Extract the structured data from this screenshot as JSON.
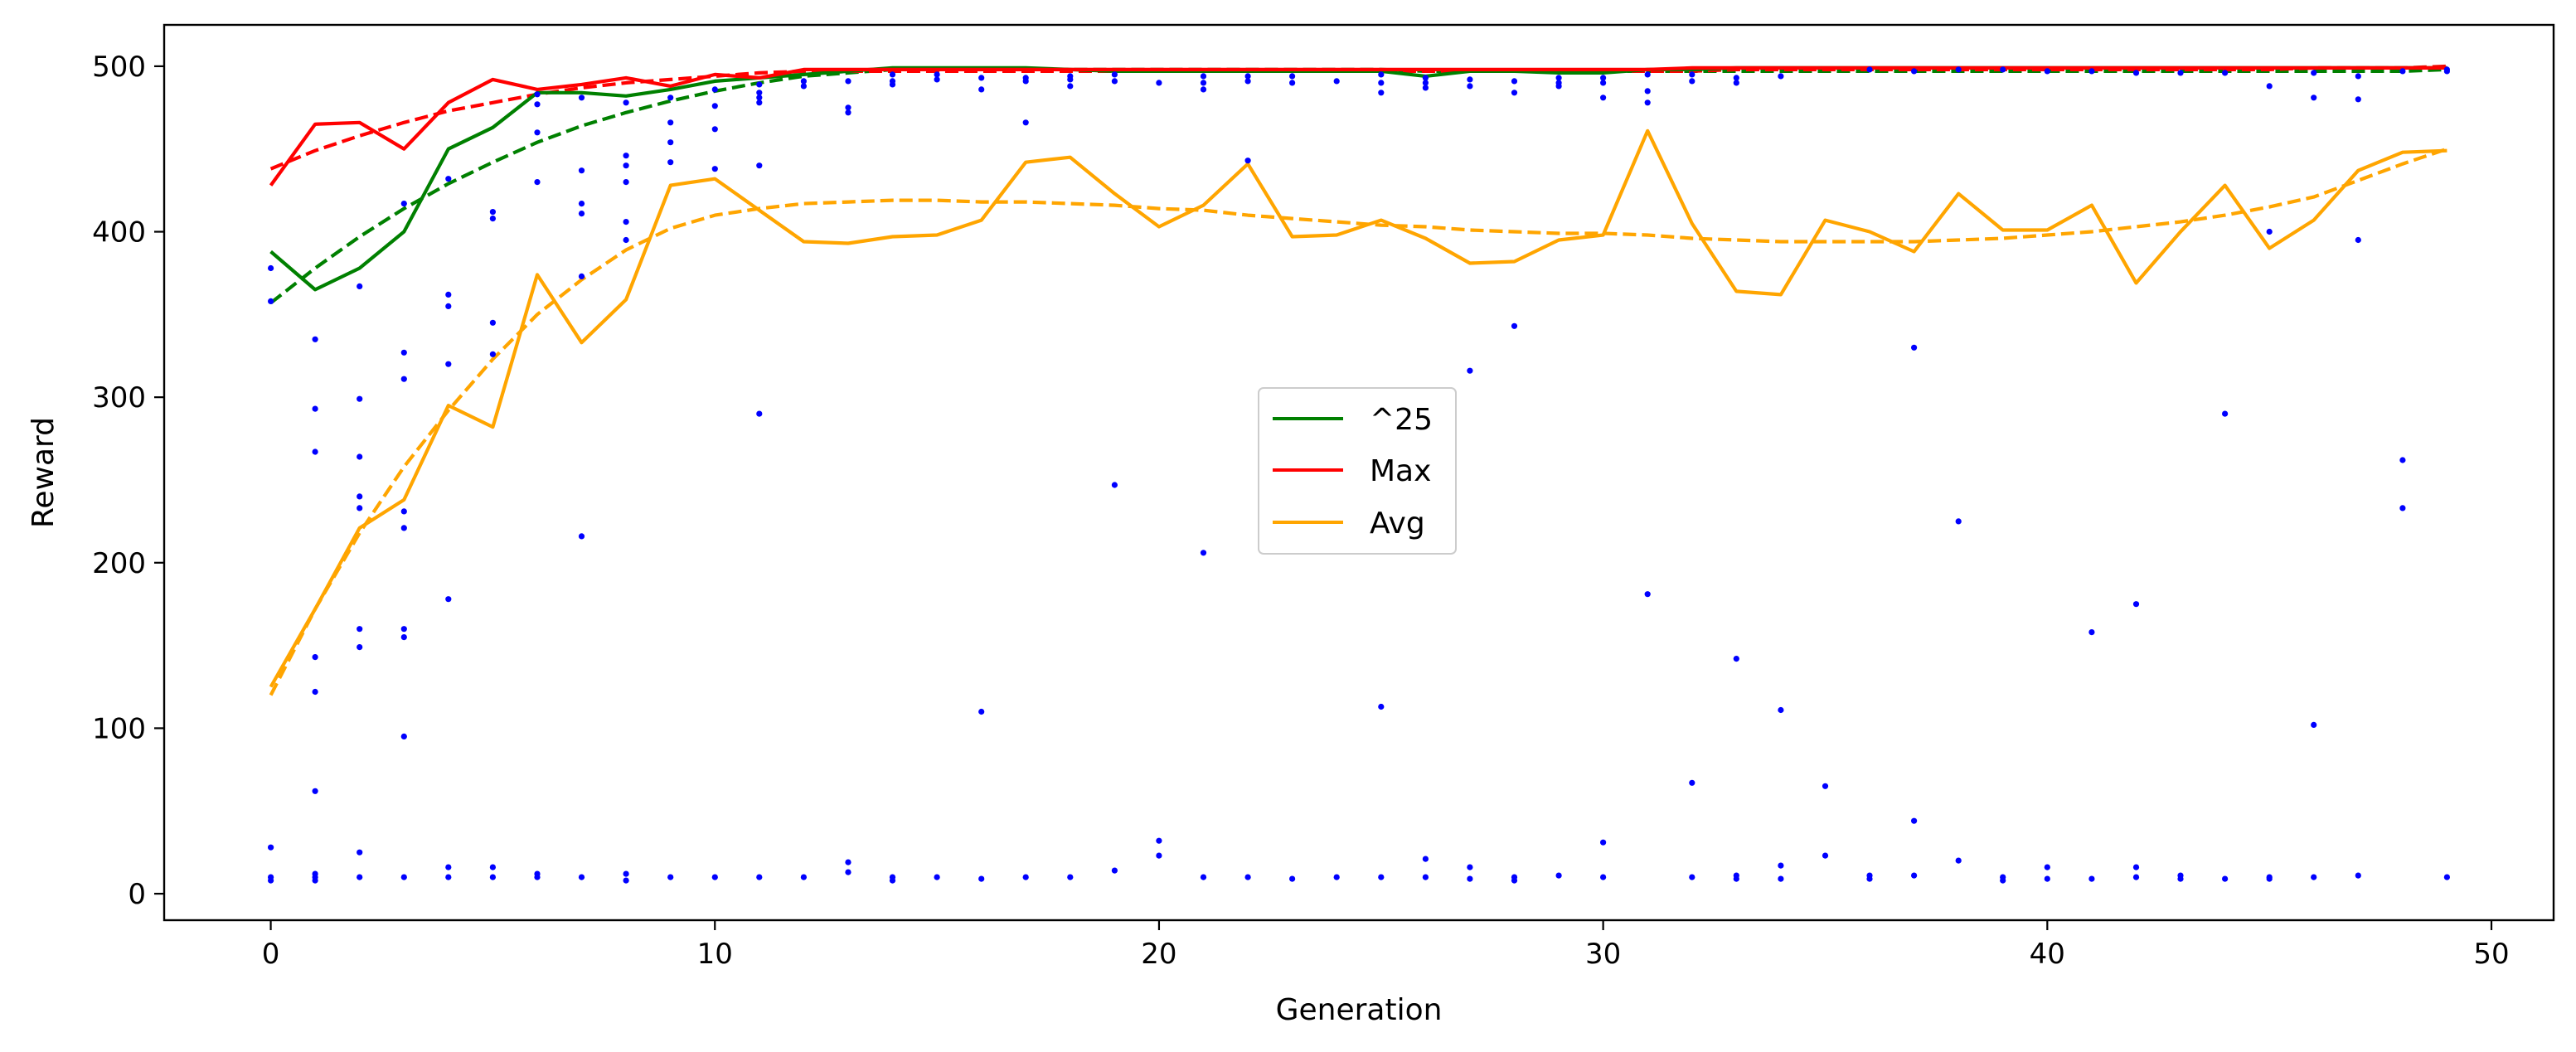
{
  "chart_data": {
    "type": "line",
    "title": "",
    "xlabel": "Generation",
    "ylabel": "Reward",
    "xlim": [
      -2.4,
      51.4
    ],
    "ylim": [
      -16,
      525
    ],
    "xticks": [
      0,
      10,
      20,
      30,
      40,
      50
    ],
    "yticks": [
      0,
      100,
      200,
      300,
      400,
      500
    ],
    "grid": false,
    "legend_position": "center",
    "colors": {
      "p25": "#008000",
      "max": "#ff0000",
      "avg": "#ffa500",
      "scatter": "#0000ff"
    },
    "x": [
      0,
      1,
      2,
      3,
      4,
      5,
      6,
      7,
      8,
      9,
      10,
      11,
      12,
      13,
      14,
      15,
      16,
      17,
      18,
      19,
      20,
      21,
      22,
      23,
      24,
      25,
      26,
      27,
      28,
      29,
      30,
      31,
      32,
      33,
      34,
      35,
      36,
      37,
      38,
      39,
      40,
      41,
      42,
      43,
      44,
      45,
      46,
      47,
      48,
      49
    ],
    "series": [
      {
        "name": "^25",
        "style": "solid",
        "color": "#008000",
        "values": [
          388,
          365,
          378,
          400,
          450,
          463,
          484,
          484,
          482,
          486,
          491,
          493,
          495,
          497,
          499,
          499,
          499,
          499,
          498,
          497,
          497,
          497,
          497,
          497,
          497,
          497,
          494,
          497,
          497,
          496,
          496,
          498,
          498,
          499,
          499,
          499,
          499,
          499,
          499,
          499,
          499,
          499,
          499,
          499,
          499,
          499,
          499,
          499,
          499,
          499
        ]
      },
      {
        "name": "Max",
        "style": "solid",
        "color": "#ff0000",
        "values": [
          428,
          465,
          466,
          450,
          478,
          492,
          486,
          489,
          493,
          488,
          495,
          493,
          498,
          498,
          498,
          498,
          498,
          498,
          498,
          498,
          498,
          498,
          498,
          498,
          498,
          498,
          498,
          498,
          498,
          498,
          498,
          498,
          499,
          499,
          499,
          499,
          499,
          499,
          499,
          499,
          499,
          499,
          499,
          499,
          499,
          499,
          499,
          499,
          499,
          499
        ]
      },
      {
        "name": "Avg",
        "style": "solid",
        "color": "#ffa500",
        "values": [
          125,
          172,
          221,
          238,
          295,
          282,
          374,
          333,
          359,
          428,
          432,
          413,
          394,
          393,
          397,
          398,
          407,
          442,
          445,
          423,
          403,
          416,
          441,
          397,
          398,
          407,
          396,
          381,
          382,
          395,
          398,
          461,
          405,
          364,
          362,
          407,
          400,
          388,
          423,
          401,
          401,
          416,
          369,
          400,
          428,
          390,
          407,
          437,
          448,
          449
        ]
      },
      {
        "name": "",
        "style": "dashed",
        "color": "#008000",
        "values": [
          357,
          378,
          397,
          414,
          429,
          442,
          454,
          464,
          472,
          479,
          485,
          490,
          494,
          496,
          498,
          498,
          498,
          498,
          498,
          498,
          498,
          498,
          498,
          498,
          498,
          498,
          497,
          497,
          497,
          497,
          497,
          497,
          497,
          497,
          497,
          497,
          497,
          497,
          497,
          497,
          497,
          497,
          497,
          497,
          497,
          497,
          497,
          497,
          497,
          498
        ]
      },
      {
        "name": "",
        "style": "dashed",
        "color": "#ff0000",
        "values": [
          438,
          449,
          458,
          466,
          473,
          478,
          483,
          487,
          490,
          492,
          494,
          496,
          497,
          497,
          497,
          497,
          497,
          497,
          497,
          497,
          497,
          497,
          497,
          497,
          497,
          497,
          497,
          497,
          497,
          497,
          497,
          497,
          497,
          498,
          498,
          498,
          498,
          498,
          498,
          498,
          498,
          498,
          498,
          498,
          498,
          498,
          499,
          499,
          499,
          500
        ]
      },
      {
        "name": "",
        "style": "dashed",
        "color": "#ffa500",
        "values": [
          120,
          172,
          218,
          258,
          292,
          323,
          350,
          371,
          389,
          402,
          410,
          414,
          417,
          418,
          419,
          419,
          418,
          418,
          417,
          416,
          414,
          413,
          410,
          408,
          406,
          404,
          403,
          401,
          400,
          399,
          399,
          398,
          396,
          395,
          394,
          394,
          394,
          394,
          395,
          396,
          398,
          400,
          403,
          406,
          410,
          415,
          421,
          431,
          441,
          450
        ]
      }
    ],
    "scatter": {
      "name": "",
      "color": "#0000ff",
      "points": [
        [
          0,
          378
        ],
        [
          0,
          358
        ],
        [
          0,
          28
        ],
        [
          0,
          10
        ],
        [
          0,
          8
        ],
        [
          1,
          335
        ],
        [
          1,
          293
        ],
        [
          1,
          267
        ],
        [
          1,
          143
        ],
        [
          1,
          122
        ],
        [
          1,
          62
        ],
        [
          1,
          12
        ],
        [
          1,
          10
        ],
        [
          1,
          8
        ],
        [
          2,
          367
        ],
        [
          2,
          299
        ],
        [
          2,
          264
        ],
        [
          2,
          240
        ],
        [
          2,
          233
        ],
        [
          2,
          160
        ],
        [
          2,
          149
        ],
        [
          2,
          25
        ],
        [
          2,
          10
        ],
        [
          3,
          417
        ],
        [
          3,
          327
        ],
        [
          3,
          311
        ],
        [
          3,
          231
        ],
        [
          3,
          221
        ],
        [
          3,
          160
        ],
        [
          3,
          155
        ],
        [
          3,
          95
        ],
        [
          3,
          10
        ],
        [
          4,
          432
        ],
        [
          4,
          362
        ],
        [
          4,
          355
        ],
        [
          4,
          320
        ],
        [
          4,
          178
        ],
        [
          4,
          16
        ],
        [
          4,
          10
        ],
        [
          5,
          412
        ],
        [
          5,
          408
        ],
        [
          5,
          345
        ],
        [
          5,
          326
        ],
        [
          5,
          16
        ],
        [
          5,
          10
        ],
        [
          6,
          483
        ],
        [
          6,
          477
        ],
        [
          6,
          460
        ],
        [
          6,
          430
        ],
        [
          6,
          12
        ],
        [
          6,
          10
        ],
        [
          7,
          481
        ],
        [
          7,
          437
        ],
        [
          7,
          417
        ],
        [
          7,
          411
        ],
        [
          7,
          373
        ],
        [
          7,
          216
        ],
        [
          7,
          10
        ],
        [
          8,
          478
        ],
        [
          8,
          446
        ],
        [
          8,
          440
        ],
        [
          8,
          430
        ],
        [
          8,
          406
        ],
        [
          8,
          395
        ],
        [
          8,
          12
        ],
        [
          8,
          8
        ],
        [
          9,
          481
        ],
        [
          9,
          466
        ],
        [
          9,
          454
        ],
        [
          9,
          442
        ],
        [
          9,
          10
        ],
        [
          10,
          486
        ],
        [
          10,
          476
        ],
        [
          10,
          462
        ],
        [
          10,
          438
        ],
        [
          10,
          10
        ],
        [
          11,
          489
        ],
        [
          11,
          484
        ],
        [
          11,
          481
        ],
        [
          11,
          478
        ],
        [
          11,
          440
        ],
        [
          11,
          290
        ],
        [
          11,
          10
        ],
        [
          12,
          491
        ],
        [
          12,
          488
        ],
        [
          12,
          10
        ],
        [
          13,
          491
        ],
        [
          13,
          475
        ],
        [
          13,
          472
        ],
        [
          13,
          19
        ],
        [
          13,
          13
        ],
        [
          14,
          495
        ],
        [
          14,
          491
        ],
        [
          14,
          489
        ],
        [
          14,
          10
        ],
        [
          14,
          8
        ],
        [
          15,
          495
        ],
        [
          15,
          492
        ],
        [
          15,
          10
        ],
        [
          16,
          493
        ],
        [
          16,
          486
        ],
        [
          16,
          110
        ],
        [
          16,
          9
        ],
        [
          17,
          493
        ],
        [
          17,
          491
        ],
        [
          17,
          466
        ],
        [
          17,
          10
        ],
        [
          18,
          494
        ],
        [
          18,
          492
        ],
        [
          18,
          488
        ],
        [
          18,
          10
        ],
        [
          19,
          495
        ],
        [
          19,
          491
        ],
        [
          19,
          247
        ],
        [
          19,
          14
        ],
        [
          20,
          490
        ],
        [
          20,
          32
        ],
        [
          20,
          23
        ],
        [
          21,
          494
        ],
        [
          21,
          490
        ],
        [
          21,
          486
        ],
        [
          21,
          206
        ],
        [
          21,
          10
        ],
        [
          22,
          494
        ],
        [
          22,
          491
        ],
        [
          22,
          443
        ],
        [
          22,
          10
        ],
        [
          23,
          494
        ],
        [
          23,
          490
        ],
        [
          23,
          9
        ],
        [
          24,
          491
        ],
        [
          24,
          10
        ],
        [
          25,
          495
        ],
        [
          25,
          490
        ],
        [
          25,
          484
        ],
        [
          25,
          113
        ],
        [
          25,
          10
        ],
        [
          26,
          493
        ],
        [
          26,
          490
        ],
        [
          26,
          487
        ],
        [
          26,
          21
        ],
        [
          26,
          10
        ],
        [
          27,
          492
        ],
        [
          27,
          488
        ],
        [
          27,
          316
        ],
        [
          27,
          16
        ],
        [
          27,
          9
        ],
        [
          28,
          491
        ],
        [
          28,
          484
        ],
        [
          28,
          343
        ],
        [
          28,
          10
        ],
        [
          28,
          8
        ],
        [
          29,
          493
        ],
        [
          29,
          490
        ],
        [
          29,
          488
        ],
        [
          29,
          11
        ],
        [
          30,
          493
        ],
        [
          30,
          490
        ],
        [
          30,
          481
        ],
        [
          30,
          31
        ],
        [
          30,
          10
        ],
        [
          31,
          495
        ],
        [
          31,
          485
        ],
        [
          31,
          478
        ],
        [
          31,
          181
        ],
        [
          32,
          495
        ],
        [
          32,
          491
        ],
        [
          32,
          67
        ],
        [
          32,
          10
        ],
        [
          33,
          493
        ],
        [
          33,
          490
        ],
        [
          33,
          142
        ],
        [
          33,
          11
        ],
        [
          33,
          9
        ],
        [
          34,
          494
        ],
        [
          34,
          111
        ],
        [
          34,
          17
        ],
        [
          34,
          9
        ],
        [
          35,
          65
        ],
        [
          35,
          23
        ],
        [
          36,
          498
        ],
        [
          36,
          11
        ],
        [
          36,
          9
        ],
        [
          37,
          497
        ],
        [
          37,
          330
        ],
        [
          37,
          44
        ],
        [
          37,
          11
        ],
        [
          38,
          498
        ],
        [
          38,
          225
        ],
        [
          38,
          20
        ],
        [
          39,
          498
        ],
        [
          39,
          10
        ],
        [
          39,
          8
        ],
        [
          40,
          497
        ],
        [
          40,
          16
        ],
        [
          40,
          9
        ],
        [
          41,
          497
        ],
        [
          41,
          158
        ],
        [
          41,
          9
        ],
        [
          42,
          496
        ],
        [
          42,
          175
        ],
        [
          42,
          16
        ],
        [
          42,
          10
        ],
        [
          43,
          496
        ],
        [
          43,
          11
        ],
        [
          43,
          9
        ],
        [
          44,
          496
        ],
        [
          44,
          290
        ],
        [
          44,
          9
        ],
        [
          45,
          488
        ],
        [
          45,
          400
        ],
        [
          45,
          10
        ],
        [
          45,
          9
        ],
        [
          46,
          496
        ],
        [
          46,
          481
        ],
        [
          46,
          102
        ],
        [
          46,
          10
        ],
        [
          47,
          494
        ],
        [
          47,
          480
        ],
        [
          47,
          395
        ],
        [
          47,
          11
        ],
        [
          48,
          497
        ],
        [
          48,
          262
        ],
        [
          48,
          233
        ],
        [
          49,
          498
        ],
        [
          49,
          497
        ],
        [
          49,
          10
        ]
      ]
    }
  }
}
